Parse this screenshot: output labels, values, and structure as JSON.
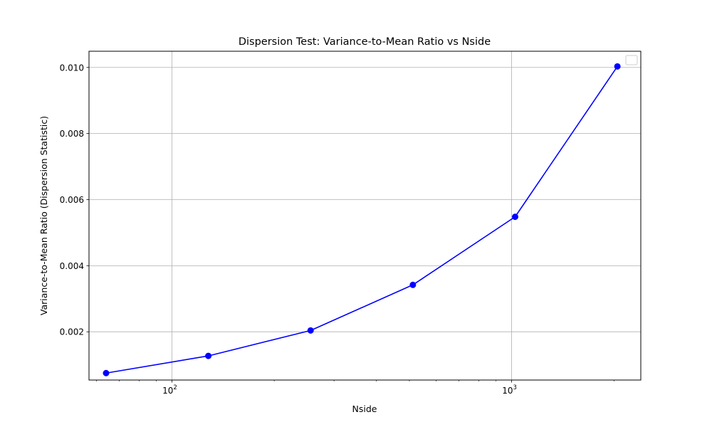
{
  "chart_data": {
    "type": "line",
    "title": "Dispersion Test: Variance-to-Mean Ratio vs Nside",
    "xlabel": "Nside",
    "ylabel": "Variance-to-Mean Ratio (Dispersion Statistic)",
    "x_scale": "log",
    "xlim": [
      57,
      2400
    ],
    "ylim": [
      0.00054,
      0.01049
    ],
    "x_ticks": [
      {
        "value": 100,
        "base": "10",
        "exp": "2"
      },
      {
        "value": 1000,
        "base": "10",
        "exp": "3"
      }
    ],
    "y_ticks": [
      {
        "value": 0.002,
        "label": "0.002"
      },
      {
        "value": 0.004,
        "label": "0.004"
      },
      {
        "value": 0.006,
        "label": "0.006"
      },
      {
        "value": 0.008,
        "label": "0.008"
      },
      {
        "value": 0.01,
        "label": "0.010"
      }
    ],
    "grid": true,
    "legend": {
      "position": "top-right",
      "entries": []
    },
    "series": [
      {
        "color": "#0000ff",
        "marker": "circle",
        "x": [
          64,
          128,
          256,
          512,
          1024,
          2048
        ],
        "y": [
          0.00075,
          0.00127,
          0.00204,
          0.00342,
          0.00548,
          0.01003
        ]
      }
    ]
  }
}
